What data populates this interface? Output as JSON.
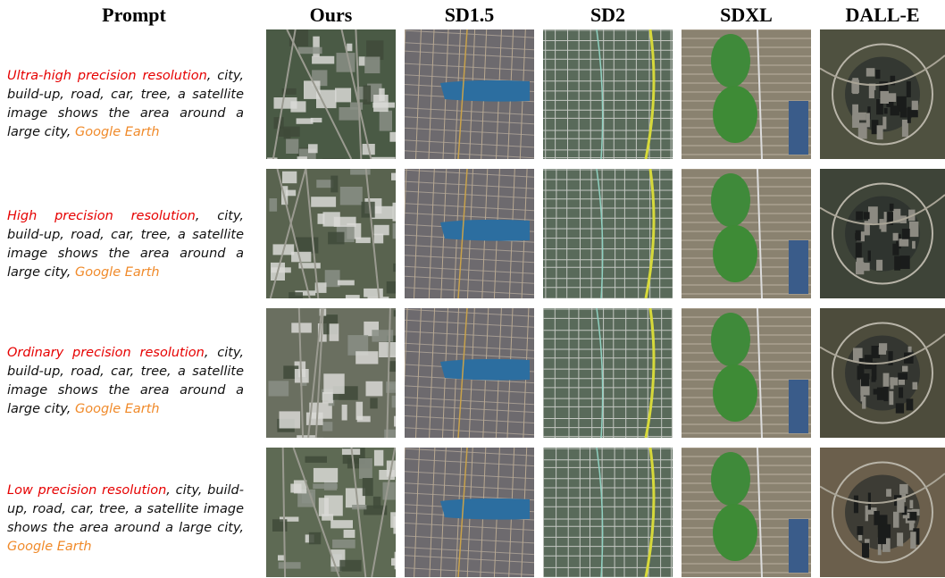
{
  "headers": {
    "prompt": "Prompt",
    "ours": "Ours",
    "sd15": "SD1.5",
    "sd2": "SD2",
    "sdxl": "SDXL",
    "dalle": "DALL-E"
  },
  "rows": [
    {
      "resolution": "Ultra-high precision resolution",
      "sep": ",",
      "body": " city, build-up, road, car, tree, a satellite image shows the area around a large city, ",
      "tail": "Google Earth"
    },
    {
      "resolution": "High precision resolution",
      "sep": ",",
      "body": " city, build-up, road, car, tree, a satellite image shows the area around a large city, ",
      "tail": "Google Earth"
    },
    {
      "resolution": "Ordinary precision resolution",
      "sep": ",",
      "body": " city, build-up, road, car, tree, a satellite image shows the area around a large city, ",
      "tail": "Google Earth"
    },
    {
      "resolution": "Low precision resolution",
      "sep": ",",
      "body": " city, build-up, road, car, tree, a satellite image shows the area around a large city, ",
      "tail": "Google Earth"
    }
  ],
  "colors": {
    "resolution": "#e60000",
    "tail": "#f08a2a"
  }
}
